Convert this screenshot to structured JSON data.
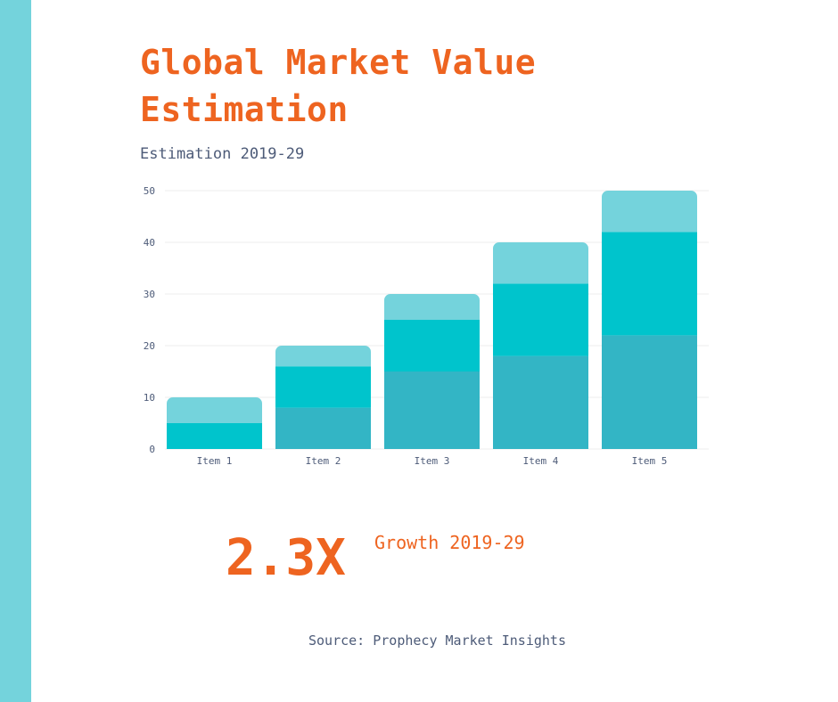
{
  "header": {
    "title": "Global Market Value Estimation",
    "subtitle": "Estimation 2019-29"
  },
  "highlight": {
    "value": "2.3X",
    "label": "Growth 2019-29"
  },
  "footer": {
    "source": "Source: Prophecy Market Insights"
  },
  "colors": {
    "accent": "#ee6420",
    "side_bar": "#74d3dc",
    "text_muted": "#4d5b78",
    "series": [
      "#33b5c5",
      "#00c4cc",
      "#74d3dc"
    ]
  },
  "chart_data": {
    "type": "bar",
    "stacked": true,
    "categories": [
      "Item 1",
      "Item 2",
      "Item 3",
      "Item 4",
      "Item 5"
    ],
    "series": [
      {
        "values": [
          0,
          8,
          15,
          18,
          22
        ]
      },
      {
        "values": [
          5,
          8,
          10,
          14,
          20
        ]
      },
      {
        "values": [
          5,
          4,
          5,
          8,
          8
        ]
      }
    ],
    "yticks": [
      0,
      10,
      20,
      30,
      40,
      50
    ],
    "ylim": [
      0,
      50
    ],
    "grid": true,
    "legend": "none"
  }
}
